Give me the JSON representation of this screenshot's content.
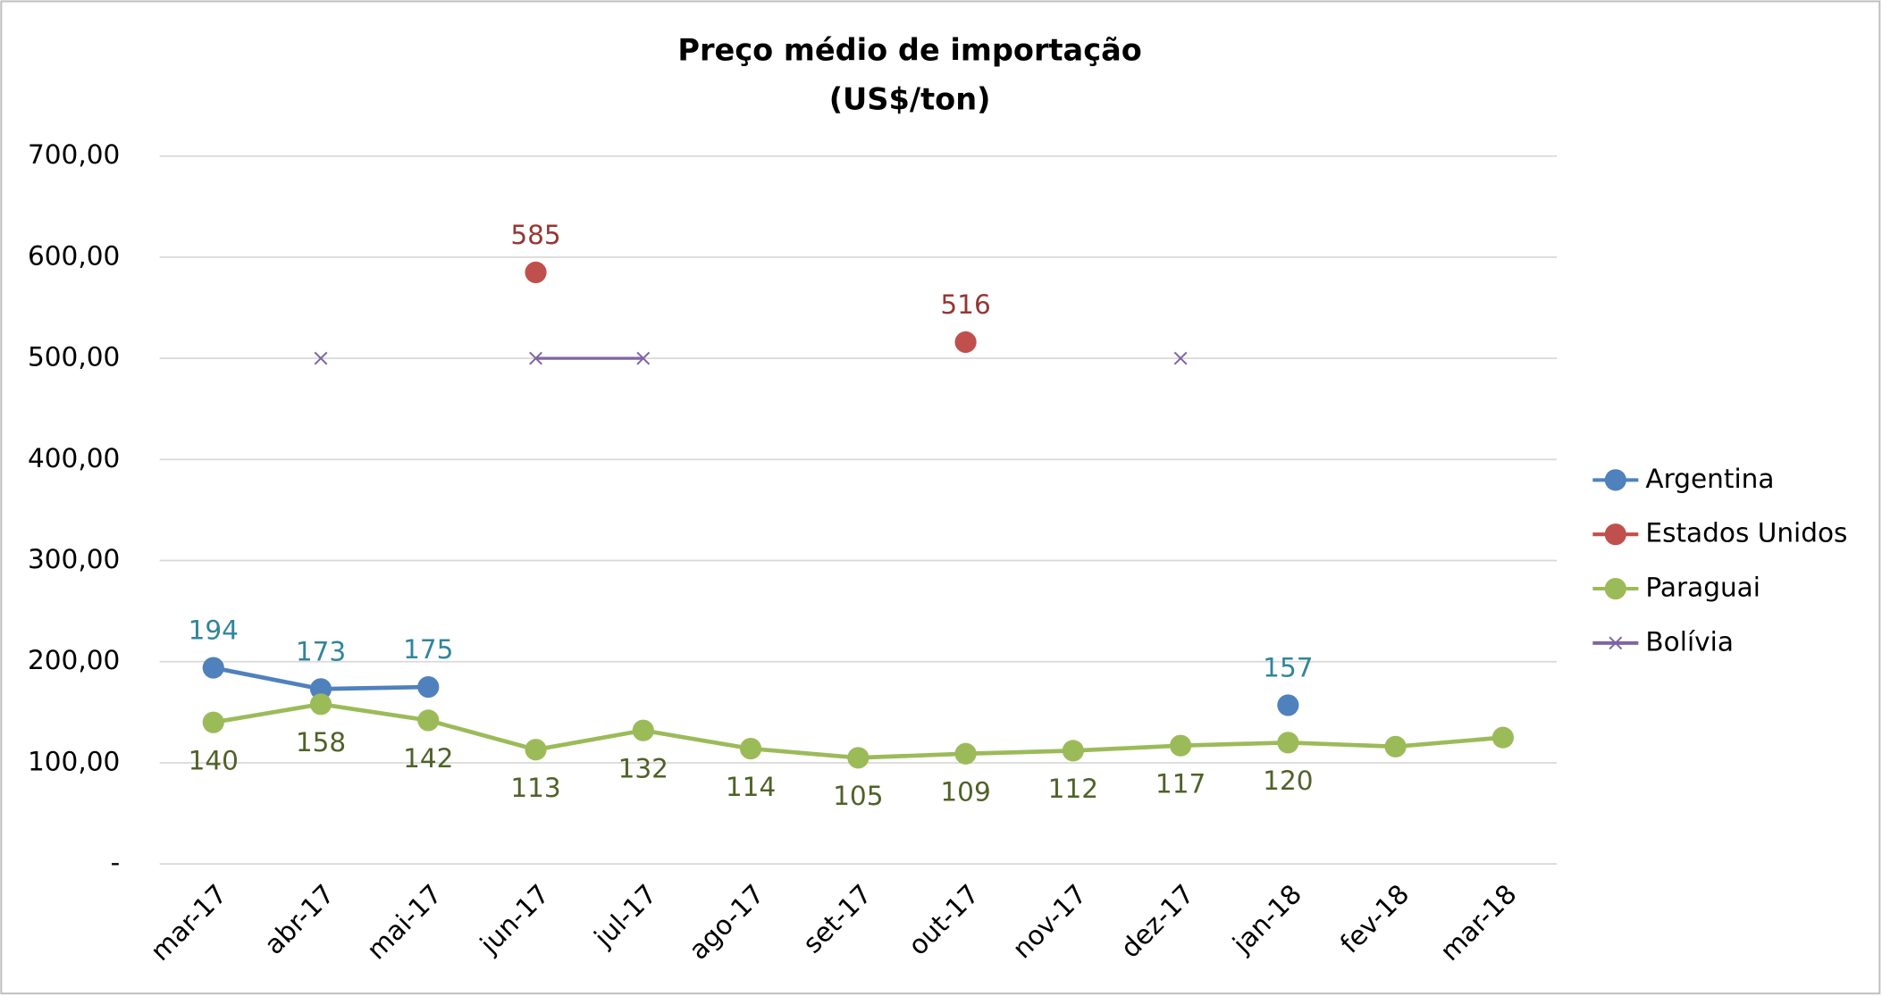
{
  "chart_data": {
    "type": "line",
    "title": "Preço médio de importação",
    "subtitle": "(US$/ton)",
    "categories": [
      "mar-17",
      "abr-17",
      "mai-17",
      "jun-17",
      "jul-17",
      "ago-17",
      "set-17",
      "out-17",
      "nov-17",
      "dez-17",
      "jan-18",
      "fev-18",
      "mar-18"
    ],
    "series": [
      {
        "name": "Argentina",
        "color": "#4f81bd",
        "marker": "circle",
        "label_color": "#31859c",
        "label_position": "above",
        "values": [
          194,
          173,
          175,
          null,
          null,
          null,
          null,
          null,
          null,
          null,
          157,
          null,
          null
        ],
        "value_labels": [
          "194",
          "173",
          "175",
          null,
          null,
          null,
          null,
          null,
          null,
          null,
          "157",
          null,
          null
        ]
      },
      {
        "name": "Estados Unidos",
        "color": "#c0504d",
        "marker": "circle",
        "label_color": "#953735",
        "label_position": "above",
        "values": [
          null,
          null,
          null,
          585,
          null,
          null,
          null,
          516,
          null,
          null,
          null,
          null,
          null
        ],
        "value_labels": [
          null,
          null,
          null,
          "585",
          null,
          null,
          null,
          "516",
          null,
          null,
          null,
          null,
          null
        ]
      },
      {
        "name": "Paraguai",
        "color": "#9bbb59",
        "marker": "circle",
        "label_color": "#4f6228",
        "label_position": "below",
        "values": [
          140,
          158,
          142,
          113,
          132,
          114,
          105,
          109,
          112,
          117,
          120,
          116,
          125
        ],
        "value_labels": [
          "140",
          "158",
          "142",
          "113",
          "132",
          "114",
          "105",
          "109",
          "112",
          "117",
          "120",
          null,
          null
        ]
      },
      {
        "name": "Bolívia",
        "color": "#8064a2",
        "marker": "x",
        "values": [
          null,
          500,
          null,
          500,
          500,
          null,
          null,
          null,
          null,
          500,
          null,
          null,
          null
        ]
      }
    ],
    "ylim": [
      0,
      700
    ],
    "yticks": [
      {
        "value": 0,
        "label": "-"
      },
      {
        "value": 100,
        "label": "100,00"
      },
      {
        "value": 200,
        "label": "200,00"
      },
      {
        "value": 300,
        "label": "300,00"
      },
      {
        "value": 400,
        "label": "400,00"
      },
      {
        "value": 500,
        "label": "500,00"
      },
      {
        "value": 600,
        "label": "600,00"
      },
      {
        "value": 700,
        "label": "700,00"
      }
    ],
    "grid": true,
    "legend": "right"
  }
}
